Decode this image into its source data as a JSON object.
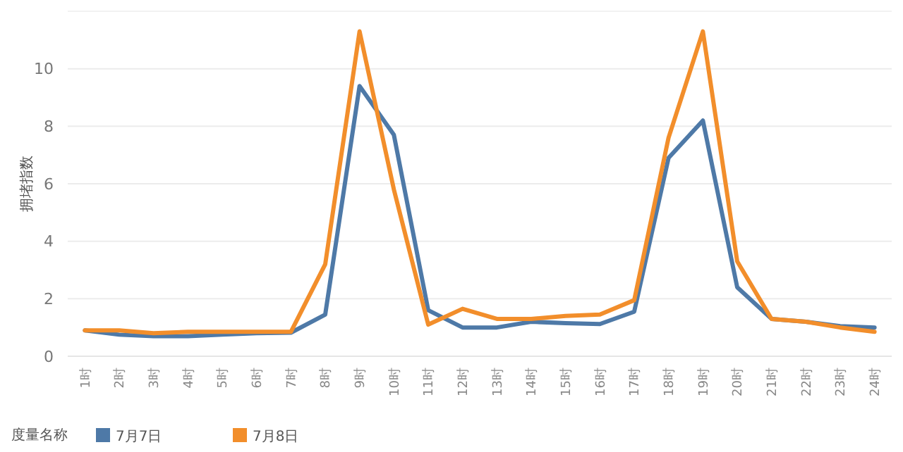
{
  "chart_data": {
    "type": "line",
    "ylabel": "拥堵指数",
    "legend_title": "度量名称",
    "legend": "bottom left",
    "grid": "y",
    "marker": "none",
    "line_style": "solid",
    "categories": [
      "1时",
      "2时",
      "3时",
      "4时",
      "5时",
      "6时",
      "7时",
      "8时",
      "9时",
      "10时",
      "11时",
      "12时",
      "13时",
      "14时",
      "15时",
      "16时",
      "17时",
      "18时",
      "19时",
      "20时",
      "21时",
      "22时",
      "23时",
      "24时"
    ],
    "ylim": [
      0,
      12
    ],
    "yticks": [
      0,
      2,
      4,
      6,
      8,
      10
    ],
    "series": [
      {
        "name": "7月7日",
        "color": "#4e79a7",
        "values": [
          0.9,
          0.75,
          0.7,
          0.7,
          0.75,
          0.8,
          0.82,
          1.45,
          9.4,
          7.7,
          1.6,
          1.0,
          1.0,
          1.2,
          1.15,
          1.12,
          1.55,
          6.9,
          8.2,
          2.4,
          1.3,
          1.2,
          1.05,
          1.0
        ]
      },
      {
        "name": "7月8日",
        "color": "#f28e2b",
        "values": [
          0.9,
          0.9,
          0.8,
          0.85,
          0.85,
          0.85,
          0.85,
          3.2,
          11.3,
          5.8,
          1.1,
          1.65,
          1.3,
          1.3,
          1.4,
          1.45,
          1.95,
          7.6,
          11.3,
          3.3,
          1.3,
          1.2,
          1.0,
          0.85
        ]
      }
    ]
  }
}
